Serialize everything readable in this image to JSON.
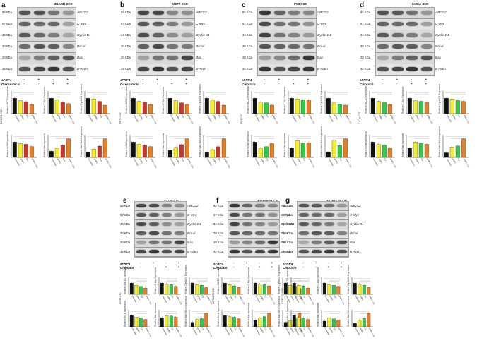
{
  "proteins": [
    {
      "name": "ABCG2",
      "kda": "65 KDa"
    },
    {
      "name": "C-Myc",
      "kda": "57 KDa"
    },
    {
      "name": "Cyclin D1",
      "kda": "34 KDa"
    },
    {
      "name": "Bcl-xl",
      "kda": "30 KDa"
    },
    {
      "name": "Bax",
      "kda": "20 KDa"
    },
    {
      "name": "B-Actin",
      "kda": "45 KDa"
    }
  ],
  "bar_colors": [
    "#111111",
    "#f4ee2a",
    "#c0392b",
    "#e67e22"
  ],
  "panels": [
    {
      "letter": "a",
      "cell_line": "MDA231 CSC",
      "treat1": "sFRP4",
      "treat2": "Doxorubicin",
      "side_label": "MDA231 CSC",
      "groups": [
        "Untreated",
        "sFRP4",
        "Dox",
        "sFRP4 + Dox"
      ],
      "colors": [
        "#111111",
        "#f4ee2a",
        "#c0392b",
        "#e67e22"
      ],
      "plots": [
        {
          "ylabel": "Relative ABCG2 expression",
          "values": [
            1.0,
            0.85,
            0.78,
            0.6
          ]
        },
        {
          "ylabel": "Relative C-Myc Expression",
          "values": [
            1.0,
            0.9,
            0.75,
            0.65
          ]
        },
        {
          "ylabel": "Relative CyclinD1 Expression",
          "values": [
            1.0,
            0.95,
            0.8,
            0.55
          ]
        },
        {
          "ylabel": "Relative Bcl-xl expression",
          "values": [
            1.0,
            0.9,
            0.85,
            0.7
          ]
        },
        {
          "ylabel": "Relative Bax expression",
          "values": [
            0.4,
            0.6,
            0.8,
            1.2
          ]
        },
        {
          "ylabel": "Relative Bax/ Bcl-xl expression",
          "values": [
            0.5,
            0.8,
            1.1,
            1.8
          ]
        }
      ]
    },
    {
      "letter": "b",
      "cell_line": "MCF7 CSC",
      "treat1": "sFRP4",
      "treat2": "Doxorubicin",
      "side_label": "MCF7 CSC",
      "groups": [
        "Untreated",
        "sFRP4",
        "Dox",
        "sFRP4 + Dox"
      ],
      "colors": [
        "#111111",
        "#f4ee2a",
        "#c0392b",
        "#e67e22"
      ],
      "plots": [
        {
          "ylabel": "Relative ABCG2 expression",
          "values": [
            1.0,
            0.8,
            0.75,
            0.6
          ]
        },
        {
          "ylabel": "Relative C-Myc Expression",
          "values": [
            1.0,
            0.85,
            0.7,
            0.6
          ]
        },
        {
          "ylabel": "Relative CyclinD1 Expression",
          "values": [
            1.0,
            0.9,
            0.8,
            0.55
          ]
        },
        {
          "ylabel": "Relative Bcl-xl expression",
          "values": [
            1.0,
            0.85,
            0.8,
            0.7
          ]
        },
        {
          "ylabel": "Relative Bax expression",
          "values": [
            0.5,
            0.7,
            0.9,
            1.3
          ]
        },
        {
          "ylabel": "Relative Bax/ Bcl-xl expression",
          "values": [
            0.5,
            0.8,
            1.1,
            1.9
          ]
        }
      ]
    },
    {
      "letter": "c",
      "cell_line": "PC3 CSC",
      "treat1": "sFRP4",
      "treat2": "Cisplatin",
      "side_label": "PC3 CSC",
      "groups": [
        "Untreated",
        "sFRP4",
        "Cis",
        "sFRP4 + Cis"
      ],
      "colors": [
        "#111111",
        "#f4ee2a",
        "#2ecc40",
        "#e67e22"
      ],
      "plots": [
        {
          "ylabel": "Relative ABCG2 expression",
          "values": [
            1.0,
            0.75,
            0.7,
            0.55
          ]
        },
        {
          "ylabel": "Relative C-Myc Expression",
          "values": [
            1.0,
            0.95,
            0.9,
            0.9
          ]
        },
        {
          "ylabel": "Relative CyclinD1 Expression",
          "values": [
            1.0,
            0.7,
            0.6,
            0.55
          ]
        },
        {
          "ylabel": "Relative Bcl-xl expression",
          "values": [
            1.0,
            0.6,
            0.7,
            0.9
          ]
        },
        {
          "ylabel": "Relative Bax expression",
          "values": [
            0.6,
            1.1,
            0.9,
            0.95
          ]
        },
        {
          "ylabel": "Relative Bax/ Bcl-xl expression",
          "values": [
            0.4,
            1.3,
            0.9,
            1.4
          ]
        }
      ]
    },
    {
      "letter": "d",
      "cell_line": "LnCap CSC",
      "treat1": "sFRP4",
      "treat2": "Cisplatin",
      "side_label": "LnCap CSC",
      "groups": [
        "Untreated",
        "sFRP4",
        "Cis",
        "sFRP4 + Cis"
      ],
      "colors": [
        "#111111",
        "#f4ee2a",
        "#2ecc40",
        "#e67e22"
      ],
      "plots": [
        {
          "ylabel": "Relative ABCG2 expression",
          "values": [
            1.0,
            0.8,
            0.75,
            0.6
          ]
        },
        {
          "ylabel": "Relative C-Myc Expression",
          "values": [
            1.0,
            0.85,
            0.8,
            0.75
          ]
        },
        {
          "ylabel": "Relative CyclinD1 Expression",
          "values": [
            1.0,
            0.95,
            0.85,
            0.8
          ]
        },
        {
          "ylabel": "Relative Bcl-xl expression",
          "values": [
            1.0,
            0.85,
            0.8,
            0.6
          ]
        },
        {
          "ylabel": "Relative Bax expression",
          "values": [
            0.6,
            1.0,
            0.9,
            0.85
          ]
        },
        {
          "ylabel": "Relative Bax/ Bcl-xl expression",
          "values": [
            0.4,
            0.9,
            1.0,
            1.6
          ]
        }
      ]
    },
    {
      "letter": "e",
      "cell_line": "A2780 CSC",
      "treat1": "sFRP4",
      "treat2": "Cisplatin",
      "side_label": "A2780 CSC",
      "groups": [
        "Untreated",
        "sFRP4",
        "Cis",
        "sFRP4 + Cis"
      ],
      "colors": [
        "#111111",
        "#f4ee2a",
        "#2ecc40",
        "#e67e22"
      ],
      "plots": [
        {
          "ylabel": "Relative ABCG2 expression",
          "values": [
            1.0,
            0.8,
            0.7,
            0.55
          ]
        },
        {
          "ylabel": "Relative C-Myc Expression",
          "values": [
            1.0,
            0.9,
            0.85,
            0.7
          ]
        },
        {
          "ylabel": "Relative CyclinD1 Expression",
          "values": [
            1.0,
            0.85,
            0.8,
            0.6
          ]
        },
        {
          "ylabel": "Relative Bcl-xl expression",
          "values": [
            1.0,
            0.85,
            0.8,
            0.65
          ]
        },
        {
          "ylabel": "Relative Bax expression",
          "values": [
            0.8,
            1.0,
            0.95,
            0.85
          ]
        },
        {
          "ylabel": "Relative Bax/ Bcl-xl expression",
          "values": [
            0.5,
            0.8,
            0.9,
            1.5
          ]
        }
      ]
    },
    {
      "letter": "f",
      "cell_line": "A2780ADR CSC",
      "treat1": "sFRP4",
      "treat2": "Cisplatin",
      "side_label": "A2780ADR CSC",
      "groups": [
        "Untreated",
        "sFRP4",
        "Cis",
        "sFRP4 + Cis"
      ],
      "colors": [
        "#111111",
        "#f4ee2a",
        "#2ecc40",
        "#e67e22"
      ],
      "plots": [
        {
          "ylabel": "Relative ABCG2 expression",
          "values": [
            1.0,
            0.85,
            0.75,
            0.6
          ]
        },
        {
          "ylabel": "Relative C-Myc Expression",
          "values": [
            1.0,
            0.9,
            0.85,
            0.75
          ]
        },
        {
          "ylabel": "Relative CyclinD1 Expression",
          "values": [
            1.0,
            0.8,
            0.7,
            0.5
          ]
        },
        {
          "ylabel": "Relative Bcl-xl expression",
          "values": [
            1.0,
            0.9,
            0.85,
            0.7
          ]
        },
        {
          "ylabel": "Relative Bax expression",
          "values": [
            0.6,
            0.8,
            0.9,
            1.2
          ]
        },
        {
          "ylabel": "Relative Bax/ Bcl-xl expression",
          "values": [
            0.5,
            0.7,
            0.9,
            1.5
          ]
        }
      ]
    },
    {
      "letter": "g",
      "cell_line": "A2780 CIS CSC",
      "treat1": "sFRP4",
      "treat2": "Cisplatin",
      "side_label": "A2780 CIS CSC",
      "groups": [
        "Untreated",
        "sFRP4",
        "Cis",
        "sFRP4 + Cis"
      ],
      "colors": [
        "#111111",
        "#f4ee2a",
        "#2ecc40",
        "#e67e22"
      ],
      "plots": [
        {
          "ylabel": "Relative ABCG2 expression",
          "values": [
            1.0,
            0.8,
            0.75,
            0.55
          ]
        },
        {
          "ylabel": "Relative C-Myc Expression",
          "values": [
            1.0,
            0.85,
            0.8,
            0.7
          ]
        },
        {
          "ylabel": "Relative CyclinD1 Expression",
          "values": [
            1.0,
            0.9,
            0.8,
            0.6
          ]
        },
        {
          "ylabel": "Relative Bcl-xl expression",
          "values": [
            1.0,
            0.85,
            0.8,
            0.65
          ]
        },
        {
          "ylabel": "Relative Bax expression",
          "values": [
            0.5,
            0.8,
            0.7,
            0.6
          ]
        },
        {
          "ylabel": "Relative Bax/ Bcl-xl expression",
          "values": [
            0.4,
            0.8,
            1.0,
            1.6
          ]
        }
      ]
    }
  ],
  "plus_minus": {
    "row1": [
      "-",
      "+",
      "-",
      "+"
    ],
    "row2": [
      "-",
      "-",
      "+",
      "+"
    ]
  }
}
